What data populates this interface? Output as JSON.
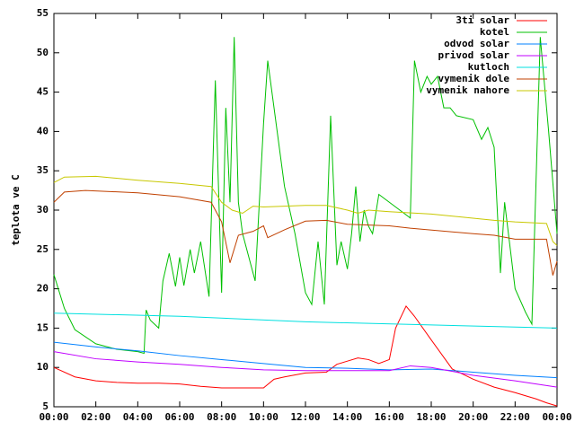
{
  "chart_data": {
    "type": "line",
    "y_label": "teplota ve C",
    "xlim": [
      0,
      24
    ],
    "ylim": [
      5,
      55
    ],
    "xticks": [
      {
        "value": 0,
        "label": "00:00"
      },
      {
        "value": 2,
        "label": "02:00"
      },
      {
        "value": 4,
        "label": "04:00"
      },
      {
        "value": 6,
        "label": "06:00"
      },
      {
        "value": 8,
        "label": "08:00"
      },
      {
        "value": 10,
        "label": "10:00"
      },
      {
        "value": 12,
        "label": "12:00"
      },
      {
        "value": 14,
        "label": "14:00"
      },
      {
        "value": 16,
        "label": "16:00"
      },
      {
        "value": 18,
        "label": "18:00"
      },
      {
        "value": 20,
        "label": "20:00"
      },
      {
        "value": 22,
        "label": "22:00"
      },
      {
        "value": 24,
        "label": "00:00"
      }
    ],
    "yticks": [
      5,
      10,
      15,
      20,
      25,
      30,
      35,
      40,
      45,
      50,
      55
    ],
    "legend": "top-right",
    "series": [
      {
        "name": "3ti solar",
        "color": "#ff0000",
        "x": [
          0,
          1,
          2,
          3,
          4,
          5,
          6,
          7,
          8,
          9,
          10,
          10.5,
          11,
          12,
          13,
          13.5,
          14,
          14.5,
          15,
          15.5,
          16,
          16.3,
          16.8,
          17.2,
          18,
          19,
          20,
          21,
          22,
          23,
          23.5,
          24
        ],
        "values": [
          10,
          8.8,
          8.3,
          8.1,
          8.0,
          8.0,
          7.9,
          7.6,
          7.4,
          7.4,
          7.4,
          8.5,
          8.8,
          9.3,
          9.4,
          10.4,
          10.8,
          11.2,
          11.0,
          10.5,
          11.0,
          15,
          17.8,
          16.5,
          13.5,
          9.8,
          8.5,
          7.5,
          6.8,
          6.0,
          5.5,
          5.1
        ]
      },
      {
        "name": "kotel",
        "color": "#00c000",
        "x": [
          0,
          0.5,
          1,
          2,
          3,
          4,
          4.3,
          4.4,
          4.6,
          5,
          5.2,
          5.5,
          5.8,
          6,
          6.2,
          6.5,
          6.7,
          7,
          7.4,
          7.7,
          8,
          8.2,
          8.4,
          8.6,
          8.8,
          9,
          9.6,
          10,
          10.2,
          10.5,
          11,
          11.5,
          12,
          12.3,
          12.6,
          12.9,
          13.2,
          13.5,
          13.7,
          14,
          14.2,
          14.4,
          14.6,
          14.8,
          15,
          15.2,
          15.5,
          16,
          16.5,
          17,
          17.2,
          17.5,
          17.8,
          18,
          18.3,
          18.6,
          18.9,
          19.2,
          20,
          20.4,
          20.7,
          21,
          21.3,
          21.5,
          22,
          22.5,
          22.8,
          23.2,
          23.6,
          24
        ],
        "values": [
          21.8,
          17.5,
          14.8,
          13,
          12.3,
          12,
          11.8,
          17.3,
          16,
          15,
          21,
          24.5,
          20.3,
          24,
          20.4,
          25,
          22,
          26,
          19,
          46.5,
          19.5,
          43,
          31,
          52,
          31,
          27,
          21,
          41,
          49,
          43,
          33,
          27,
          19.5,
          18,
          26,
          18,
          42,
          23,
          26,
          22.5,
          27,
          33,
          26,
          30,
          28,
          27,
          32,
          31,
          30,
          29,
          49,
          45,
          47,
          46,
          47,
          43,
          43,
          42,
          41.5,
          39,
          40.5,
          38,
          22,
          31,
          20,
          17,
          15.5,
          52,
          40,
          27
        ]
      },
      {
        "name": "odvod solar",
        "color": "#0080ff",
        "x": [
          0,
          2,
          4,
          6,
          8,
          10,
          12,
          14,
          16,
          18,
          20,
          22,
          24
        ],
        "values": [
          13.2,
          12.6,
          12.1,
          11.5,
          11,
          10.5,
          10,
          9.9,
          9.7,
          9.8,
          9.4,
          9,
          8.7
        ]
      },
      {
        "name": "privod solar",
        "color": "#c000ff",
        "x": [
          0,
          2,
          4,
          6,
          8,
          10,
          12,
          14,
          16,
          17,
          18,
          20,
          22,
          24
        ],
        "values": [
          12,
          11.1,
          10.7,
          10.4,
          10,
          9.7,
          9.6,
          9.6,
          9.6,
          10.2,
          10,
          9,
          8.3,
          7.5
        ]
      },
      {
        "name": "kutloch",
        "color": "#00e0e0",
        "x": [
          0,
          6,
          12,
          18,
          24
        ],
        "values": [
          16.9,
          16.5,
          15.8,
          15.4,
          15.0
        ]
      },
      {
        "name": "vymenik dole",
        "color": "#c04000",
        "x": [
          0,
          0.5,
          1.5,
          4,
          6,
          7.5,
          8,
          8.4,
          8.8,
          9.5,
          10,
          10.2,
          11,
          12,
          13,
          14,
          16,
          17,
          20,
          21,
          22,
          23.5,
          23.8,
          24
        ],
        "values": [
          31,
          32.3,
          32.5,
          32.2,
          31.7,
          31,
          28.5,
          23.3,
          26.8,
          27.3,
          28,
          26.5,
          27.5,
          28.6,
          28.7,
          28.2,
          28,
          27.7,
          27,
          26.8,
          26.3,
          26.3,
          21.7,
          23.5
        ]
      },
      {
        "name": "vymenik nahore",
        "color": "#c8c800",
        "x": [
          0,
          0.5,
          2,
          4,
          6,
          7.5,
          8,
          8.5,
          9,
          9.5,
          10,
          12,
          13,
          14,
          14.5,
          15,
          16,
          18,
          21,
          22,
          23.5,
          23.8,
          24
        ],
        "values": [
          33.5,
          34.2,
          34.3,
          33.8,
          33.4,
          33,
          31,
          30,
          29.6,
          30.5,
          30.4,
          30.6,
          30.6,
          30,
          29.6,
          30,
          29.8,
          29.5,
          28.7,
          28.5,
          28.3,
          26,
          25.5
        ]
      }
    ]
  }
}
